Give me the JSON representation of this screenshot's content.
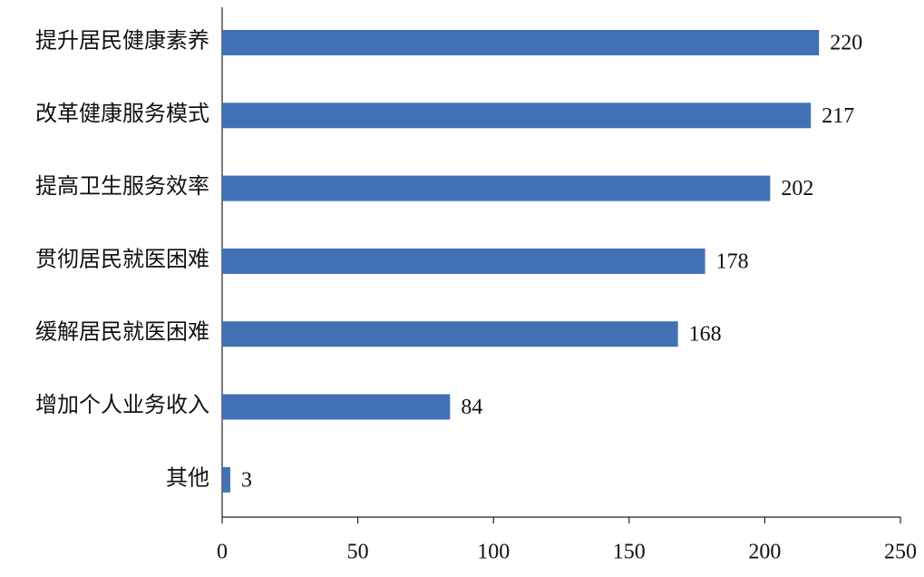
{
  "chart_data": {
    "type": "bar",
    "orientation": "horizontal",
    "categories": [
      "提升居民健康素养",
      "改革健康服务模式",
      "提高卫生服务效率",
      "贯彻居民就医困难",
      "缓解居民就医困难",
      "增加个人业务收入",
      "其他"
    ],
    "values": [
      220,
      217,
      202,
      178,
      168,
      84,
      3
    ],
    "color": "#4270b4",
    "xlim": [
      0,
      250
    ],
    "xticks": [
      0,
      50,
      100,
      150,
      200,
      250
    ],
    "grid": false
  }
}
